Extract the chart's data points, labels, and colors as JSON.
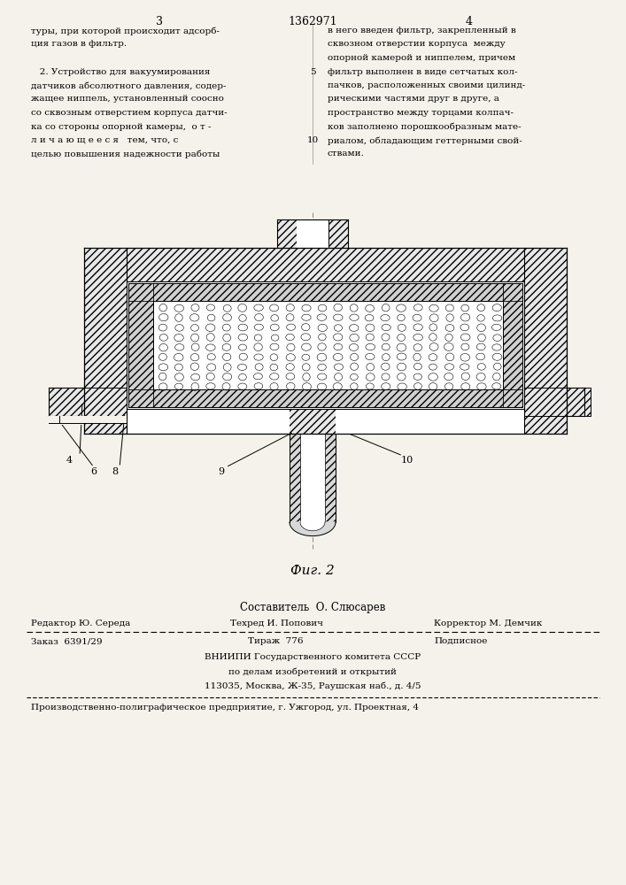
{
  "bg_color": "#f5f2eb",
  "page_number_left": "3",
  "page_number_center": "1362971",
  "page_number_right": "4",
  "col_left_text": [
    "туры, при которой происходит адсорб-",
    "ция газов в фильтр.",
    "",
    "   2. Устройство для вакуумирования",
    "датчиков абсолютного давления, содер-",
    "жащее ниппель, установленный соосно",
    "со сквозным отверстием корпуса датчи-",
    "ка со стороны опорной камеры,  о т -",
    "л и ч а ю щ е е с я   тем, что, с",
    "целью повышения надежности работы"
  ],
  "col_right_text": [
    "в него введен фильтр, закрепленный в",
    "сквозном отверстии корпуса  между",
    "опорной камерой и ниппелем, причем",
    "фильтр выполнен в виде сетчатых кол-",
    "пачков, расположенных своими цилинд-",
    "рическими частями друг в друге, а",
    "пространство между торцами колпач-",
    "ков заполнено порошкообразным мате-",
    "риалом, обладающим геттерными свой-",
    "ствами."
  ],
  "line_number_5": "5",
  "line_number_10": "10",
  "fig_label": "Фиг. 2",
  "составитель": "Составитель  О. Слюсарев",
  "footer_line1_left": "Редактор Ю. Середа",
  "footer_line1_mid": "Техред И. Попович",
  "footer_line1_right": "Корректор М. Демчик",
  "footer_line2_left": "Заказ  6391/29",
  "footer_line2_mid": "Тираж  776",
  "footer_line2_right": "Подписное",
  "footer_line3": "ВНИИПИ Государственного комитета СССР",
  "footer_line4": "по делам изобретений и открытий",
  "footer_line5": "113035, Москва, Ж-35, Раушская наб., д. 4/5",
  "footer_last": "Производственно-полиграфическое предприятие, г. Ужгород, ул. Проектная, 4"
}
